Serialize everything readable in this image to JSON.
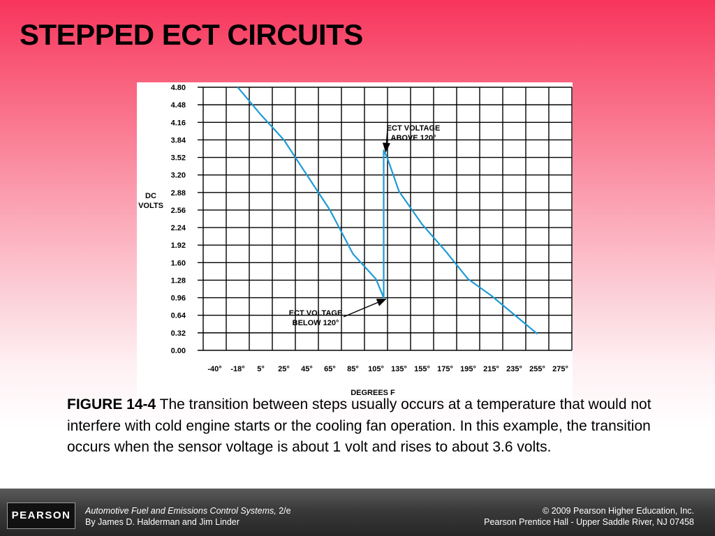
{
  "slide": {
    "title": "STEPPED ECT CIRCUITS"
  },
  "chart_data": {
    "type": "line",
    "ylabel": [
      "DC",
      "VOLTS"
    ],
    "xlabel": "DEGREES F",
    "x_ticks": [
      "-40°",
      "-18°",
      "5°",
      "25°",
      "45°",
      "65°",
      "85°",
      "105°",
      "135°",
      "155°",
      "175°",
      "195°",
      "215°",
      "235°",
      "255°",
      "275°"
    ],
    "y_ticks": [
      "4.80",
      "4.48",
      "4.16",
      "3.84",
      "3.52",
      "3.20",
      "2.88",
      "2.56",
      "2.24",
      "1.92",
      "1.60",
      "1.28",
      "0.96",
      "0.64",
      "0.32",
      "0.00"
    ],
    "ylim": [
      0,
      4.8
    ],
    "grid": true,
    "series": [
      {
        "color": "#1e9ad6",
        "points": [
          [
            -18,
            4.8
          ],
          [
            5,
            4.3
          ],
          [
            25,
            3.84
          ],
          [
            45,
            3.2
          ],
          [
            65,
            2.56
          ],
          [
            85,
            1.76
          ],
          [
            105,
            1.3
          ],
          [
            115,
            0.96
          ],
          [
            115,
            3.65
          ],
          [
            120,
            3.5
          ],
          [
            135,
            2.9
          ],
          [
            155,
            2.3
          ],
          [
            175,
            1.82
          ],
          [
            195,
            1.3
          ],
          [
            215,
            1.0
          ],
          [
            235,
            0.65
          ],
          [
            255,
            0.3
          ]
        ]
      }
    ],
    "annotations": [
      {
        "lines": [
          "ECT VOLTAGE",
          "ABOVE 120°"
        ],
        "x": 115,
        "y": 3.65
      },
      {
        "lines": [
          "ECT VOLTAGE",
          "BELOW 120°"
        ],
        "x": 115,
        "y": 0.96
      }
    ]
  },
  "caption": {
    "figure": "FIGURE 14-4",
    "text": " The transition between steps usually occurs at a temperature that would not interfere with cold engine starts or the cooling fan operation. In this example, the transition occurs when the sensor voltage is about 1 volt and rises to about 3.6 volts."
  },
  "footer": {
    "logo": "PEARSON",
    "book_title": "Automotive Fuel and Emissions Control Systems,",
    "edition": " 2/e",
    "authors": "By James D. Halderman and Jim Linder",
    "copyright": "© 2009 Pearson Higher Education, Inc.",
    "publisher": "Pearson Prentice Hall - Upper Saddle River, NJ 07458"
  }
}
